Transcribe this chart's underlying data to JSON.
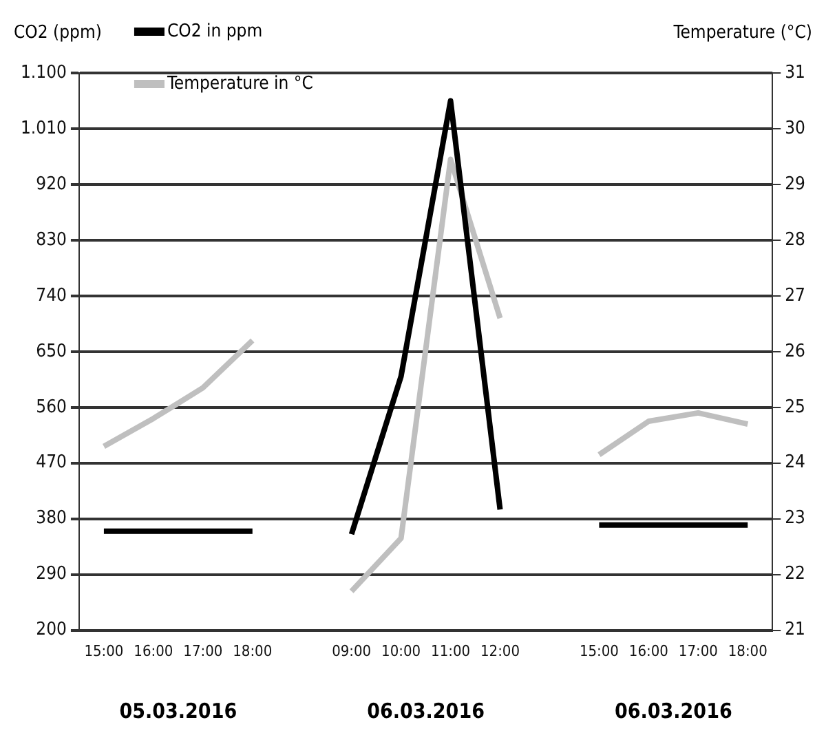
{
  "chart_data": {
    "type": "line",
    "ylabel": "CO2 (ppm)",
    "y2label": "Temperature (°C)",
    "categories": [
      "15:00",
      "16:00",
      "17:00",
      "18:00",
      null,
      "09:00",
      "10:00",
      "11:00",
      "12:00",
      null,
      "15:00",
      "16:00",
      "17:00",
      "18:00"
    ],
    "series": [
      {
        "name": "CO2 in ppm",
        "color": "#000000",
        "values": [
          360,
          360,
          360,
          360,
          null,
          355,
          610,
          1055,
          395,
          null,
          370,
          370,
          370,
          370
        ]
      },
      {
        "name": "Temperature in °C",
        "color": "#bfbfbf",
        "axis": "y2",
        "values": [
          24.3,
          24.8,
          25.35,
          26.2,
          null,
          21.7,
          22.65,
          29.45,
          26.6,
          null,
          24.15,
          24.75,
          24.9,
          24.7
        ]
      }
    ],
    "ylim": [
      200,
      1100
    ],
    "yticks": [
      200,
      290,
      380,
      470,
      560,
      650,
      740,
      830,
      920,
      {
        "value": 1010,
        "label": "1.010"
      },
      {
        "value": 1100,
        "label": "1.100"
      }
    ],
    "y2lim": [
      21,
      31
    ],
    "y2ticks": [
      21,
      22,
      23,
      24,
      25,
      26,
      27,
      28,
      29,
      30,
      31
    ],
    "grid": "y",
    "legend": "top left",
    "marker": "none",
    "line_style": "solid",
    "annotations": [
      "05.03.2016",
      "06.03.2016",
      "06.03.2016"
    ]
  }
}
